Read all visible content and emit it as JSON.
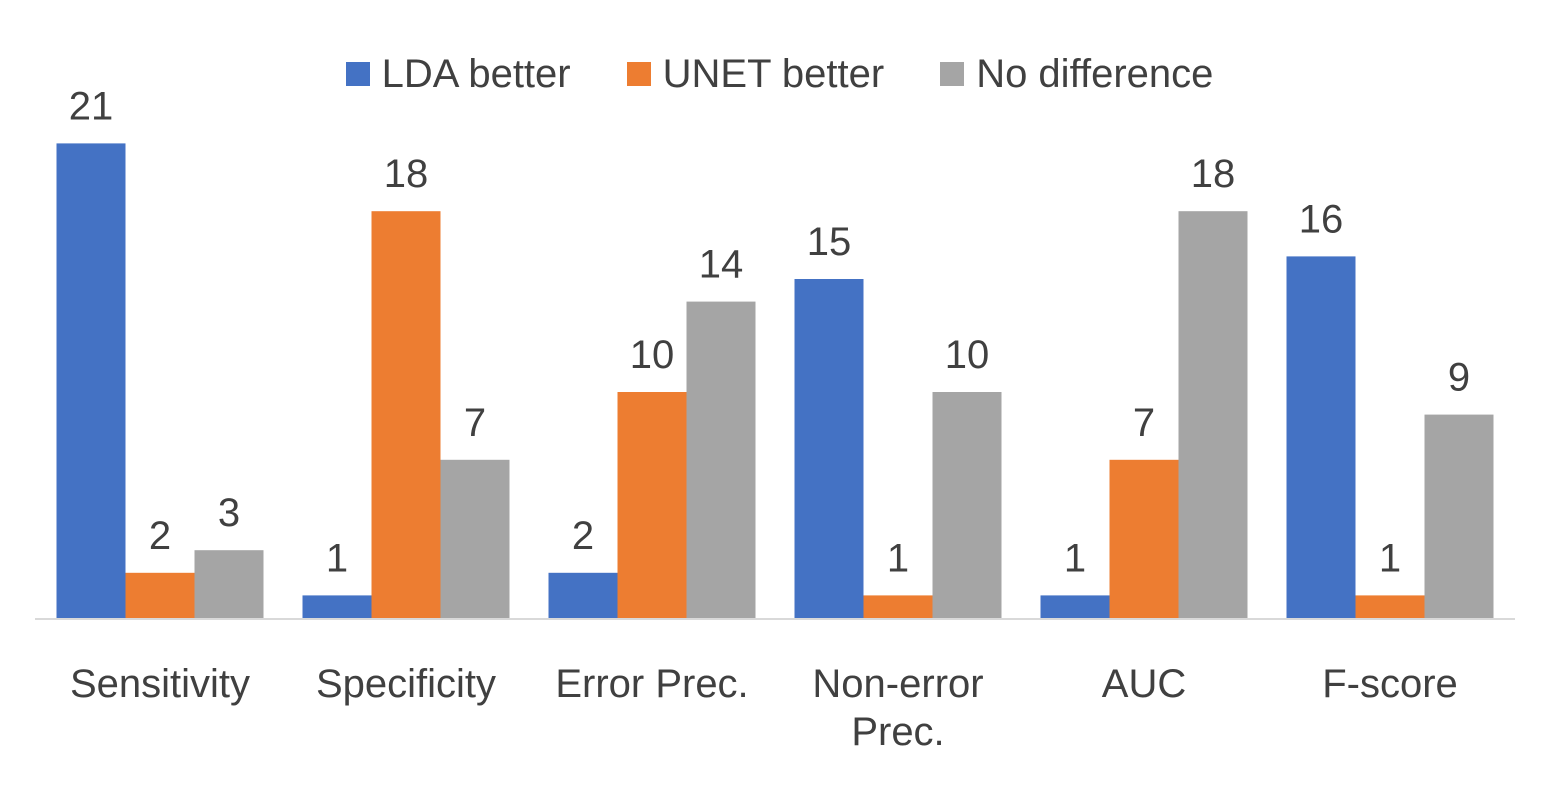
{
  "chart_data": {
    "type": "bar",
    "title": "",
    "xlabel": "",
    "ylabel": "",
    "categories": [
      "Sensitivity",
      "Specificity",
      "Error Prec.",
      "Non-error Prec.",
      "AUC",
      "F-score"
    ],
    "series": [
      {
        "name": "LDA better",
        "color": "#4472C4",
        "values": [
          21,
          1,
          2,
          15,
          1,
          16
        ]
      },
      {
        "name": "UNET better",
        "color": "#ED7D31",
        "values": [
          2,
          18,
          10,
          1,
          7,
          1
        ]
      },
      {
        "name": "No difference",
        "color": "#A5A5A5",
        "values": [
          3,
          7,
          14,
          10,
          18,
          9
        ]
      }
    ],
    "ylim": [
      0,
      21
    ],
    "grid": false,
    "legend_position": "top",
    "data_labels": true,
    "axis_color": "#D9D9D9"
  }
}
